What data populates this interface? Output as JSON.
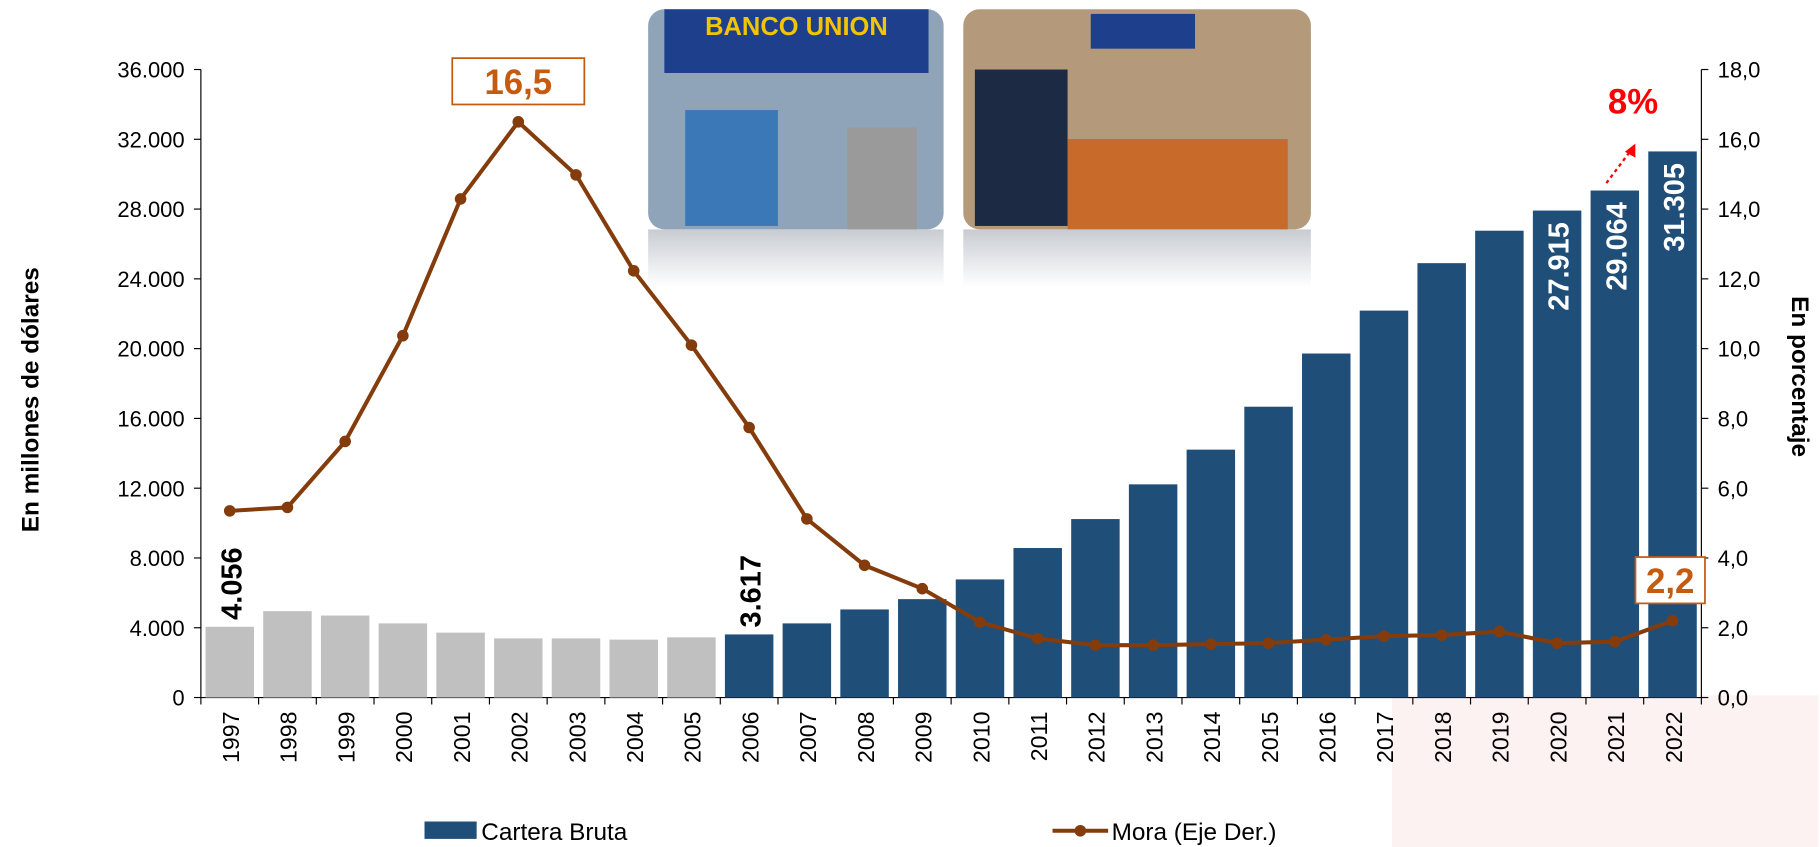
{
  "chart_data": {
    "type": "bar_line",
    "y_label": "En millones de dólares",
    "y2_label": "En porcentaje",
    "annotation": "8%",
    "photo_sign": "BANCO UNION",
    "categories": [
      "1997",
      "1998",
      "1999",
      "2000",
      "2001",
      "2002",
      "2003",
      "2004",
      "2005",
      "2006",
      "2007",
      "2008",
      "2009",
      "2010",
      "2011",
      "2012",
      "2013",
      "2014",
      "2015",
      "2016",
      "2017",
      "2018",
      "2019",
      "2020",
      "2021",
      "2022"
    ],
    "series": [
      {
        "name": "Cartera Bruta",
        "color": "#1f4e79",
        "colors": [
          "#c0c0c0",
          "#c0c0c0",
          "#c0c0c0",
          "#c0c0c0",
          "#c0c0c0",
          "#c0c0c0",
          "#c0c0c0",
          "#c0c0c0",
          "#c0c0c0",
          "#1f4e79",
          "#1f4e79",
          "#1f4e79",
          "#1f4e79",
          "#1f4e79",
          "#1f4e79",
          "#1f4e79",
          "#1f4e79",
          "#1f4e79",
          "#1f4e79",
          "#1f4e79",
          "#1f4e79",
          "#1f4e79",
          "#1f4e79",
          "#1f4e79",
          "#1f4e79",
          "#1f4e79"
        ],
        "values": [
          4056,
          4950,
          4700,
          4250,
          3720,
          3390,
          3390,
          3320,
          3450,
          3617,
          4250,
          5050,
          5640,
          6770,
          8570,
          10230,
          12220,
          14210,
          16670,
          19720,
          22180,
          24900,
          26760,
          27915,
          29064,
          31305
        ],
        "value_labels": [
          "4.056",
          null,
          null,
          null,
          null,
          null,
          null,
          null,
          null,
          "3.617",
          null,
          null,
          null,
          null,
          null,
          null,
          null,
          null,
          null,
          null,
          null,
          null,
          null,
          "27.915",
          "29.064",
          "31.305"
        ]
      },
      {
        "name": "Mora (Eje Der.)",
        "color": "#843c0c",
        "axis": "y2",
        "values": [
          5.35,
          5.45,
          7.34,
          10.37,
          14.29,
          16.5,
          14.98,
          12.23,
          10.1,
          7.74,
          5.12,
          3.79,
          3.12,
          2.16,
          1.69,
          1.5,
          1.5,
          1.53,
          1.56,
          1.66,
          1.76,
          1.79,
          1.89,
          1.56,
          1.6,
          2.2
        ],
        "value_labels": [
          null,
          null,
          null,
          null,
          null,
          "16,5",
          null,
          null,
          null,
          null,
          null,
          null,
          null,
          null,
          null,
          null,
          null,
          null,
          null,
          null,
          null,
          null,
          null,
          null,
          null,
          "2,2"
        ]
      }
    ],
    "ylim": [
      0,
      36000
    ],
    "yticks": [
      0,
      {
        "value": 4000,
        "label": "4.000"
      },
      {
        "value": 8000,
        "label": "8.000"
      },
      {
        "value": 12000,
        "label": "12.000"
      },
      {
        "value": 16000,
        "label": "16.000"
      },
      {
        "value": 20000,
        "label": "20.000"
      },
      {
        "value": 24000,
        "label": "24.000"
      },
      {
        "value": 28000,
        "label": "28.000"
      },
      {
        "value": 32000,
        "label": "32.000"
      },
      {
        "value": 36000,
        "label": "36.000"
      }
    ],
    "y2lim": [
      0,
      18
    ],
    "y2ticks": [
      {
        "value": 0,
        "label": "0,0"
      },
      {
        "value": 2,
        "label": "2,0"
      },
      {
        "value": 4,
        "label": "4,0"
      },
      {
        "value": 6,
        "label": "6,0"
      },
      {
        "value": 8,
        "label": "8,0"
      },
      {
        "value": 10,
        "label": "10,0"
      },
      {
        "value": 12,
        "label": "12,0"
      },
      {
        "value": 14,
        "label": "14,0"
      },
      {
        "value": 16,
        "label": "16,0"
      },
      {
        "value": 18,
        "label": "18,0"
      }
    ]
  }
}
